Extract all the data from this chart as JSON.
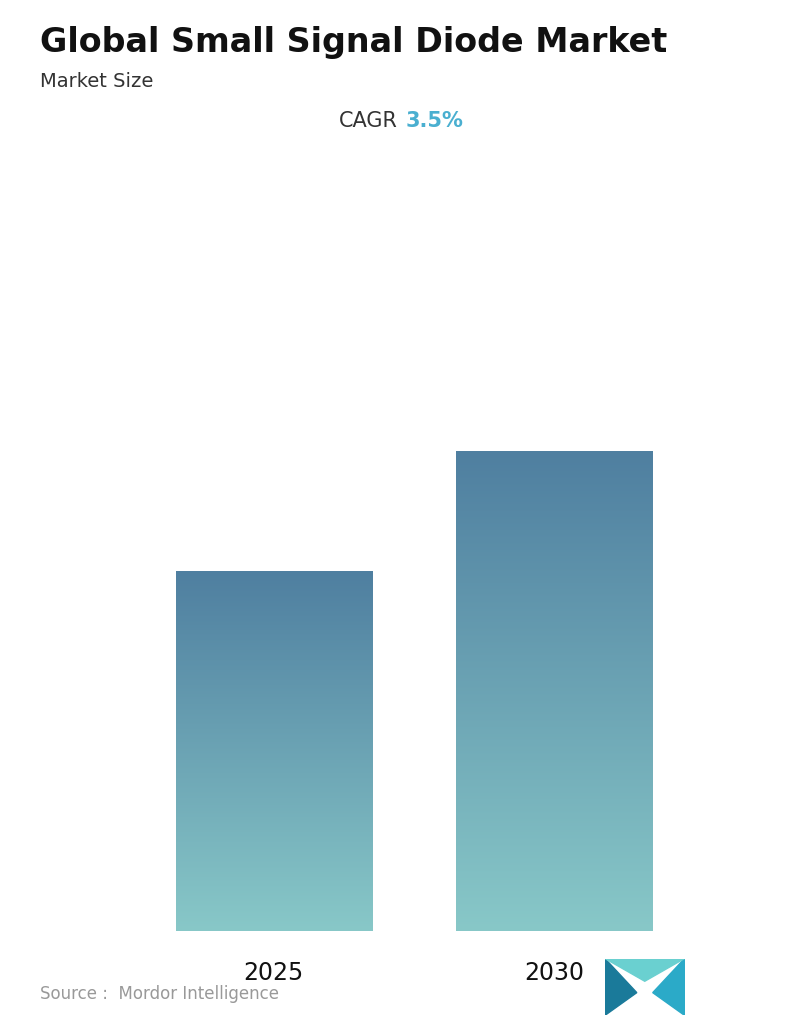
{
  "title": "Global Small Signal Diode Market",
  "subtitle": "Market Size",
  "cagr_label": "CAGR",
  "cagr_value": "3.5%",
  "cagr_color": "#4AAFD0",
  "categories": [
    "2025",
    "2030"
  ],
  "values": [
    0.6,
    0.8
  ],
  "bar_color_top": "#4F7FA0",
  "bar_color_bottom": "#88C8C8",
  "background_color": "#FFFFFF",
  "source_text": "Source :  Mordor Intelligence",
  "title_fontsize": 24,
  "subtitle_fontsize": 14,
  "cagr_fontsize": 15,
  "tick_fontsize": 17,
  "source_fontsize": 12,
  "bar_positions": [
    0.3,
    0.7
  ],
  "bar_width": 0.28,
  "ylim": [
    0,
    1.0
  ],
  "fig_width": 7.96,
  "fig_height": 10.34,
  "logo_colors": [
    "#1A7A9A",
    "#2BAAC8",
    "#6AD0D0"
  ]
}
